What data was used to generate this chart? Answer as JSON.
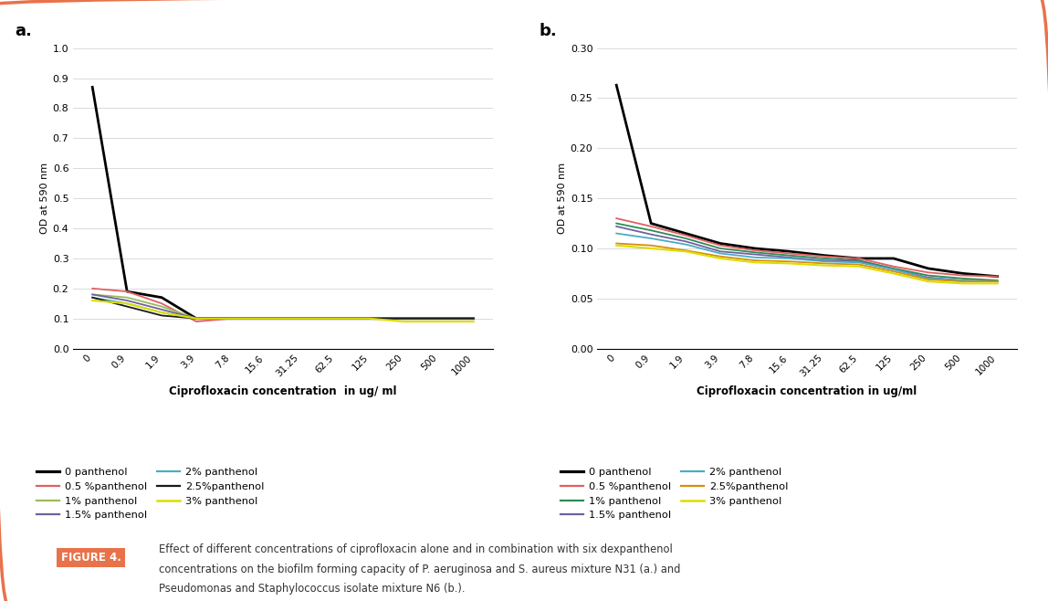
{
  "x_labels": [
    "0",
    "0.9",
    "1.9",
    "3.9",
    "7.8",
    "15.6",
    "31.25",
    "62.5",
    "125",
    "250",
    "500",
    "1000"
  ],
  "x_vals": [
    0,
    1,
    2,
    3,
    4,
    5,
    6,
    7,
    8,
    9,
    10,
    11
  ],
  "panel_a": {
    "title": "a.",
    "ylabel": "OD at 590 nm",
    "xlabel": "Ciprofloxacin concentration  in ug/ ml",
    "ylim": [
      0,
      1.0
    ],
    "yticks": [
      0,
      0.1,
      0.2,
      0.3,
      0.4,
      0.5,
      0.6,
      0.7,
      0.8,
      0.9,
      1.0
    ],
    "series": {
      "0 panthenol": {
        "color": "#000000",
        "lw": 2.0,
        "data": [
          0.87,
          0.19,
          0.17,
          0.1,
          0.1,
          0.1,
          0.1,
          0.1,
          0.1,
          0.1,
          0.1,
          0.1
        ]
      },
      "0.5 %panthenol": {
        "color": "#E06060",
        "lw": 1.3,
        "data": [
          0.2,
          0.19,
          0.15,
          0.09,
          0.1,
          0.1,
          0.1,
          0.1,
          0.1,
          0.1,
          0.1,
          0.1
        ]
      },
      "1% panthenol": {
        "color": "#9BBB59",
        "lw": 1.3,
        "data": [
          0.18,
          0.17,
          0.14,
          0.1,
          0.1,
          0.1,
          0.1,
          0.1,
          0.1,
          0.1,
          0.1,
          0.1
        ]
      },
      "1.5% panthenol": {
        "color": "#7060A0",
        "lw": 1.3,
        "data": [
          0.18,
          0.16,
          0.13,
          0.1,
          0.1,
          0.1,
          0.1,
          0.1,
          0.1,
          0.1,
          0.1,
          0.1
        ]
      },
      "2% panthenol": {
        "color": "#4BACC6",
        "lw": 1.3,
        "data": [
          0.17,
          0.15,
          0.12,
          0.1,
          0.1,
          0.1,
          0.1,
          0.1,
          0.1,
          0.1,
          0.1,
          0.1
        ]
      },
      "2.5%panthenol": {
        "color": "#1A1A1A",
        "lw": 1.3,
        "data": [
          0.17,
          0.14,
          0.11,
          0.1,
          0.1,
          0.1,
          0.1,
          0.1,
          0.1,
          0.1,
          0.1,
          0.1
        ]
      },
      "3% panthenol": {
        "color": "#DDDD00",
        "lw": 1.5,
        "data": [
          0.16,
          0.15,
          0.12,
          0.1,
          0.1,
          0.1,
          0.1,
          0.1,
          0.1,
          0.09,
          0.09,
          0.09
        ]
      }
    },
    "legend_order": [
      "0 panthenol",
      "0.5 %panthenol",
      "1% panthenol",
      "1.5% panthenol",
      "2% panthenol",
      "2.5%panthenol",
      "3% panthenol"
    ]
  },
  "panel_b": {
    "title": "b.",
    "ylabel": "OD at 590 nm",
    "xlabel": "Ciprofloxacin concentration in ug/ml",
    "ylim": [
      0,
      0.3
    ],
    "yticks": [
      0,
      0.05,
      0.1,
      0.15,
      0.2,
      0.25,
      0.3
    ],
    "series": {
      "0 panthenol": {
        "color": "#000000",
        "lw": 2.0,
        "data": [
          0.263,
          0.125,
          0.115,
          0.105,
          0.1,
          0.097,
          0.093,
          0.09,
          0.09,
          0.08,
          0.075,
          0.072
        ]
      },
      "0.5 %panthenol": {
        "color": "#E06060",
        "lw": 1.3,
        "data": [
          0.13,
          0.122,
          0.113,
          0.103,
          0.098,
          0.095,
          0.092,
          0.09,
          0.082,
          0.076,
          0.073,
          0.072
        ]
      },
      "1% panthenol": {
        "color": "#2E8B57",
        "lw": 1.3,
        "data": [
          0.125,
          0.118,
          0.11,
          0.1,
          0.096,
          0.093,
          0.09,
          0.088,
          0.08,
          0.073,
          0.07,
          0.068
        ]
      },
      "1.5% panthenol": {
        "color": "#7060A0",
        "lw": 1.3,
        "data": [
          0.122,
          0.114,
          0.107,
          0.097,
          0.094,
          0.091,
          0.088,
          0.087,
          0.079,
          0.071,
          0.068,
          0.067
        ]
      },
      "2% panthenol": {
        "color": "#4BACC6",
        "lw": 1.3,
        "data": [
          0.115,
          0.11,
          0.104,
          0.095,
          0.091,
          0.09,
          0.087,
          0.086,
          0.079,
          0.07,
          0.068,
          0.067
        ]
      },
      "2.5%panthenol": {
        "color": "#D4900A",
        "lw": 1.3,
        "data": [
          0.105,
          0.103,
          0.098,
          0.092,
          0.088,
          0.087,
          0.085,
          0.084,
          0.077,
          0.069,
          0.067,
          0.067
        ]
      },
      "3% panthenol": {
        "color": "#DDDD00",
        "lw": 1.5,
        "data": [
          0.103,
          0.1,
          0.097,
          0.09,
          0.086,
          0.085,
          0.083,
          0.082,
          0.075,
          0.067,
          0.065,
          0.065
        ]
      }
    },
    "legend_order": [
      "0 panthenol",
      "0.5 %panthenol",
      "1% panthenol",
      "1.5% panthenol",
      "2% panthenol",
      "2.5%panthenol",
      "3% panthenol"
    ]
  },
  "figure_label": "FIGURE 4.",
  "figure_caption_line1": "Effect of different concentrations of ciprofloxacin alone and in combination with six dexpanthenol",
  "figure_caption_line2": "concentrations on the biofilm forming capacity of ",
  "figure_caption_line2_italic1": "P. aeruginosa",
  "figure_caption_line2_b": " and ",
  "figure_caption_line2_italic2": "S. aureus",
  "figure_caption_line2_c": " mixture N31 (a.) and",
  "figure_caption_line3_italic1": "Pseudomonas",
  "figure_caption_line3_b": " and ",
  "figure_caption_line3_italic2": "Staphylococcus",
  "figure_caption_line3_c": " isolate mixture N6 (b.).",
  "bg_color": "#FFFFFF",
  "border_color": "#E8724A"
}
